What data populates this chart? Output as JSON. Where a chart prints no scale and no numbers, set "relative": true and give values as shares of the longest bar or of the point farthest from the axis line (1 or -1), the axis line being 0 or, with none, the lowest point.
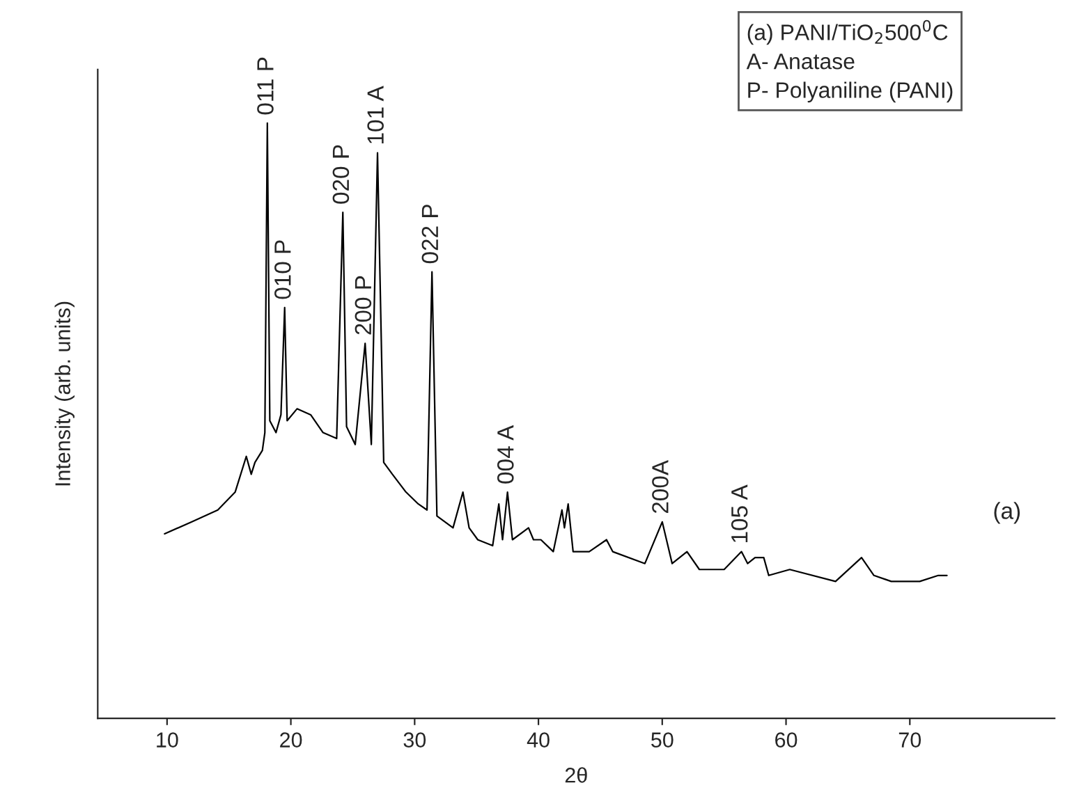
{
  "chart_data": {
    "type": "line",
    "relative": true,
    "xlabel": "2θ",
    "ylabel": "Intensity (arb. units)",
    "xlim": [
      4.4,
      81.7
    ],
    "xticks": [
      10,
      20,
      30,
      40,
      50,
      60,
      70
    ],
    "grid": false,
    "legend": false,
    "marker": "none",
    "line_style": "solid",
    "series": [
      {
        "color": "#000000",
        "x": [
          9.8,
          12.0,
          14.1,
          15.5,
          16.4,
          16.8,
          17.1,
          17.7,
          17.9,
          18.1,
          18.3,
          18.8,
          19.2,
          19.5,
          19.7,
          20.5,
          21.6,
          22.6,
          23.7,
          24.2,
          24.5,
          25.2,
          26.0,
          26.5,
          27.0,
          27.3,
          27.5,
          28.2,
          29.3,
          30.3,
          31.0,
          31.4,
          31.8,
          33.1,
          33.9,
          34.4,
          35.1,
          36.3,
          36.8,
          37.1,
          37.5,
          37.9,
          39.2,
          39.6,
          40.2,
          41.2,
          41.9,
          42.1,
          42.4,
          42.8,
          44.1,
          45.5,
          46.0,
          48.6,
          50.0,
          50.8,
          52.0,
          53.0,
          55.0,
          56.4,
          56.9,
          57.5,
          58.2,
          58.6,
          60.3,
          64.0,
          66.1,
          67.1,
          68.5,
          70.8,
          72.3,
          73.0
        ],
        "values": [
          0.31,
          0.33,
          0.35,
          0.38,
          0.44,
          0.41,
          0.43,
          0.45,
          0.48,
          1.0,
          0.5,
          0.48,
          0.51,
          0.69,
          0.5,
          0.52,
          0.51,
          0.48,
          0.47,
          0.85,
          0.49,
          0.46,
          0.63,
          0.46,
          0.95,
          0.64,
          0.43,
          0.41,
          0.38,
          0.36,
          0.35,
          0.75,
          0.34,
          0.32,
          0.38,
          0.32,
          0.3,
          0.29,
          0.36,
          0.3,
          0.38,
          0.3,
          0.32,
          0.3,
          0.3,
          0.28,
          0.35,
          0.32,
          0.36,
          0.28,
          0.28,
          0.3,
          0.28,
          0.26,
          0.33,
          0.26,
          0.28,
          0.25,
          0.25,
          0.28,
          0.26,
          0.27,
          0.27,
          0.24,
          0.25,
          0.23,
          0.27,
          0.24,
          0.23,
          0.23,
          0.24,
          0.24
        ]
      }
    ],
    "annotations": [
      {
        "text": "011 P",
        "x": 18.1,
        "y": 1.0
      },
      {
        "text": "010 P",
        "x": 19.5,
        "y": 0.69
      },
      {
        "text": "020 P",
        "x": 24.2,
        "y": 0.85
      },
      {
        "text": "200 P",
        "x": 26.0,
        "y": 0.63
      },
      {
        "text": "101 A",
        "x": 27.0,
        "y": 0.95
      },
      {
        "text": "022 P",
        "x": 31.4,
        "y": 0.75
      },
      {
        "text": "004 A",
        "x": 37.5,
        "y": 0.38
      },
      {
        "text": "200A",
        "x": 50.0,
        "y": 0.33
      },
      {
        "text": "105 A",
        "x": 56.4,
        "y": 0.28
      },
      "(a)",
      "(a) PANI/TiO$_{2}$500$^{0}$C\nA- Anatase\nP- Polyaniline (PANI)"
    ]
  }
}
